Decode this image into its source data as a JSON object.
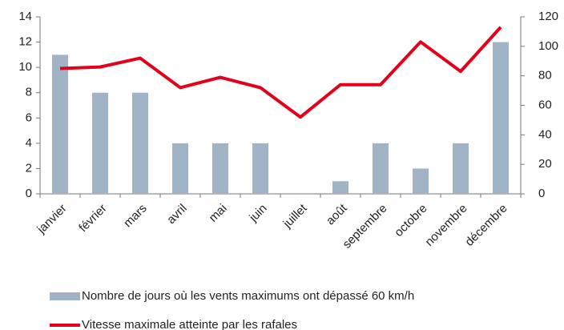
{
  "chart_data": {
    "type": "bar",
    "categories": [
      "janvier",
      "février",
      "mars",
      "avril",
      "mai",
      "juin",
      "juillet",
      "août",
      "septembre",
      "octobre",
      "novembre",
      "décembre"
    ],
    "series": [
      {
        "name": "Nombre de jours où les vents maximums ont dépassé 60 km/h",
        "type": "bar",
        "color": "#a0b4c6",
        "values": [
          11,
          8,
          8,
          4,
          4,
          4,
          0,
          1,
          4,
          2,
          4,
          12
        ]
      },
      {
        "name": "Vitesse maximale atteinte par les rafales",
        "type": "line",
        "axis": "y2",
        "color": "#e2001a",
        "values": [
          85,
          86,
          92,
          72,
          79,
          72,
          52,
          74,
          74,
          103,
          83,
          113
        ]
      }
    ],
    "ylim": [
      0,
      14
    ],
    "yticks": [
      0,
      2,
      4,
      6,
      8,
      10,
      12,
      14
    ],
    "y2lim": [
      0,
      120
    ],
    "y2ticks": [
      0,
      20,
      40,
      60,
      80,
      100,
      120
    ],
    "grid": false,
    "legend": "bottom"
  }
}
